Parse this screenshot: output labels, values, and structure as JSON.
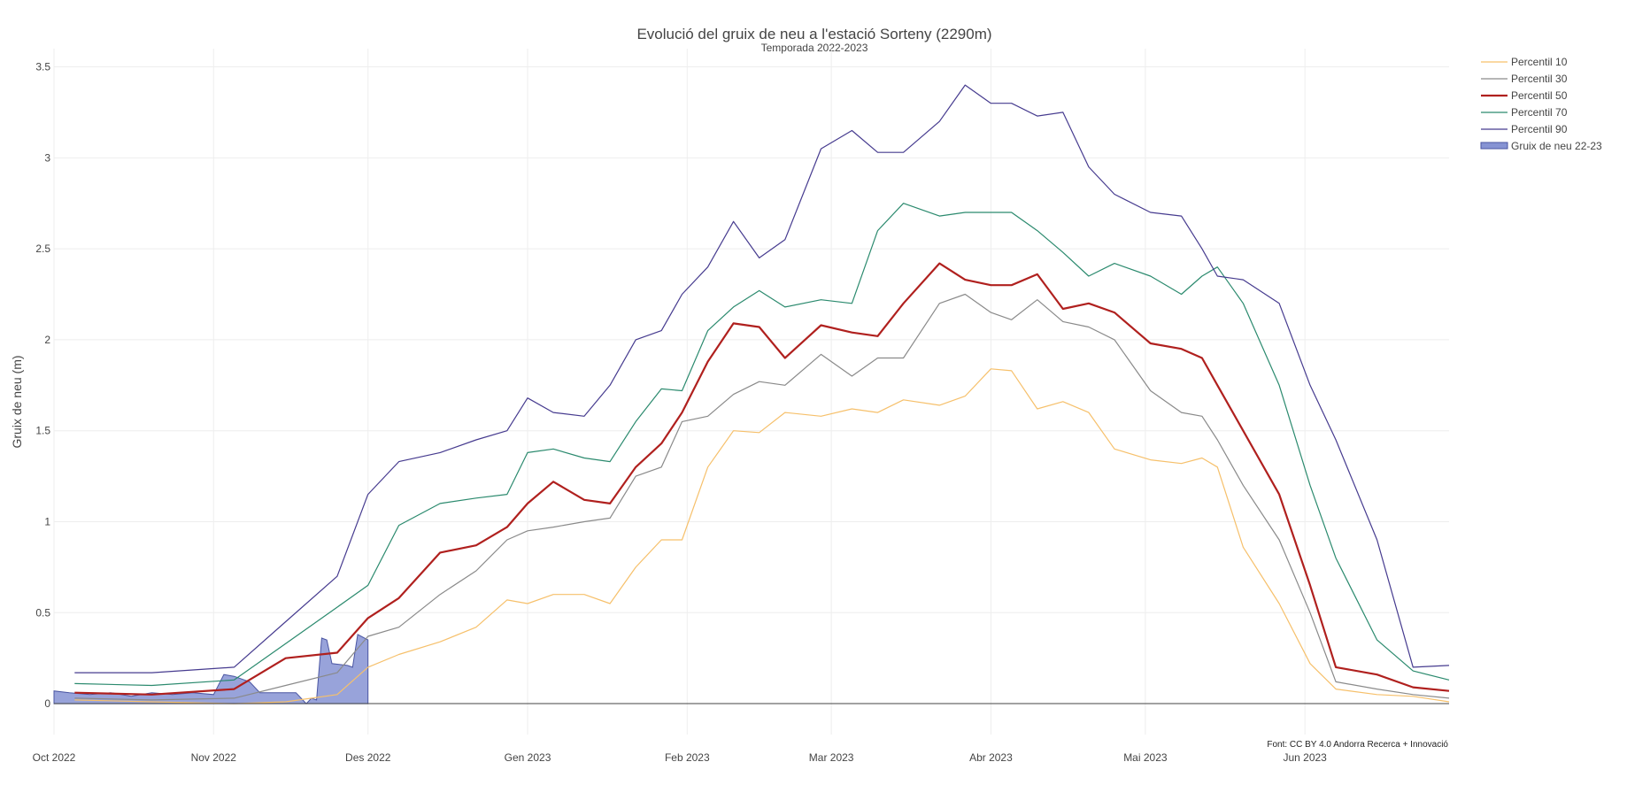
{
  "chart_data": {
    "type": "line",
    "title": "Evolució del gruix de neu a l'estació Sorteny (2290m)",
    "subtitle": "Temporada 2022-2023",
    "xlabel": "",
    "ylabel": "Gruix de neu (m)",
    "source": "Font: CC BY 4.0 Andorra Recerca + Innovació",
    "xlim": [
      "2022-10-01",
      "2023-06-29"
    ],
    "ylim": [
      -0.17,
      3.6
    ],
    "x_ticks": [
      {
        "date": "2022-10-01",
        "label": "Oct 2022"
      },
      {
        "date": "2022-11-01",
        "label": "Nov 2022"
      },
      {
        "date": "2022-12-01",
        "label": "Des 2022"
      },
      {
        "date": "2023-01-01",
        "label": "Gen 2023"
      },
      {
        "date": "2023-02-01",
        "label": "Feb 2023"
      },
      {
        "date": "2023-03-01",
        "label": "Mar 2023"
      },
      {
        "date": "2023-04-01",
        "label": "Abr 2023"
      },
      {
        "date": "2023-05-01",
        "label": "Mai 2023"
      },
      {
        "date": "2023-06-01",
        "label": "Jun 2023"
      }
    ],
    "y_ticks": [
      {
        "value": 0,
        "label": "0"
      },
      {
        "value": 0.5,
        "label": "0.5"
      },
      {
        "value": 1,
        "label": "1"
      },
      {
        "value": 1.5,
        "label": "1.5"
      },
      {
        "value": 2,
        "label": "2"
      },
      {
        "value": 2.5,
        "label": "2.5"
      },
      {
        "value": 3,
        "label": "3"
      },
      {
        "value": 3.5,
        "label": "3.5"
      }
    ],
    "grid": true,
    "legend_position": "right",
    "series": [
      {
        "name": "Percentil 10",
        "color": "#f6c06b",
        "width": 1.2,
        "kind": "line",
        "points": [
          [
            "2022-10-05",
            0.02
          ],
          [
            "2022-10-20",
            0.01
          ],
          [
            "2022-11-05",
            0.0
          ],
          [
            "2022-11-15",
            0.01
          ],
          [
            "2022-11-25",
            0.05
          ],
          [
            "2022-12-01",
            0.2
          ],
          [
            "2022-12-07",
            0.27
          ],
          [
            "2022-12-15",
            0.34
          ],
          [
            "2022-12-22",
            0.42
          ],
          [
            "2022-12-28",
            0.57
          ],
          [
            "2023-01-01",
            0.55
          ],
          [
            "2023-01-06",
            0.6
          ],
          [
            "2023-01-12",
            0.6
          ],
          [
            "2023-01-17",
            0.55
          ],
          [
            "2023-01-22",
            0.75
          ],
          [
            "2023-01-27",
            0.9
          ],
          [
            "2023-01-31",
            0.9
          ],
          [
            "2023-02-05",
            1.3
          ],
          [
            "2023-02-10",
            1.5
          ],
          [
            "2023-02-15",
            1.49
          ],
          [
            "2023-02-20",
            1.6
          ],
          [
            "2023-02-27",
            1.58
          ],
          [
            "2023-03-05",
            1.62
          ],
          [
            "2023-03-10",
            1.6
          ],
          [
            "2023-03-15",
            1.67
          ],
          [
            "2023-03-22",
            1.64
          ],
          [
            "2023-03-27",
            1.69
          ],
          [
            "2023-04-01",
            1.84
          ],
          [
            "2023-04-05",
            1.83
          ],
          [
            "2023-04-10",
            1.62
          ],
          [
            "2023-04-15",
            1.66
          ],
          [
            "2023-04-20",
            1.6
          ],
          [
            "2023-04-25",
            1.4
          ],
          [
            "2023-05-02",
            1.34
          ],
          [
            "2023-05-08",
            1.32
          ],
          [
            "2023-05-12",
            1.35
          ],
          [
            "2023-05-15",
            1.3
          ],
          [
            "2023-05-20",
            0.86
          ],
          [
            "2023-05-27",
            0.55
          ],
          [
            "2023-06-02",
            0.22
          ],
          [
            "2023-06-07",
            0.08
          ],
          [
            "2023-06-15",
            0.05
          ],
          [
            "2023-06-22",
            0.04
          ],
          [
            "2023-06-29",
            0.01
          ]
        ]
      },
      {
        "name": "Percentil 30",
        "color": "#8a8a8a",
        "width": 1.2,
        "kind": "line",
        "points": [
          [
            "2022-10-05",
            0.03
          ],
          [
            "2022-10-20",
            0.02
          ],
          [
            "2022-11-05",
            0.03
          ],
          [
            "2022-11-15",
            0.1
          ],
          [
            "2022-11-25",
            0.17
          ],
          [
            "2022-12-01",
            0.37
          ],
          [
            "2022-12-07",
            0.42
          ],
          [
            "2022-12-15",
            0.6
          ],
          [
            "2022-12-22",
            0.73
          ],
          [
            "2022-12-28",
            0.9
          ],
          [
            "2023-01-01",
            0.95
          ],
          [
            "2023-01-06",
            0.97
          ],
          [
            "2023-01-12",
            1.0
          ],
          [
            "2023-01-17",
            1.02
          ],
          [
            "2023-01-22",
            1.25
          ],
          [
            "2023-01-27",
            1.3
          ],
          [
            "2023-01-31",
            1.55
          ],
          [
            "2023-02-05",
            1.58
          ],
          [
            "2023-02-10",
            1.7
          ],
          [
            "2023-02-15",
            1.77
          ],
          [
            "2023-02-20",
            1.75
          ],
          [
            "2023-02-27",
            1.92
          ],
          [
            "2023-03-05",
            1.8
          ],
          [
            "2023-03-10",
            1.9
          ],
          [
            "2023-03-15",
            1.9
          ],
          [
            "2023-03-22",
            2.2
          ],
          [
            "2023-03-27",
            2.25
          ],
          [
            "2023-04-01",
            2.15
          ],
          [
            "2023-04-05",
            2.11
          ],
          [
            "2023-04-10",
            2.22
          ],
          [
            "2023-04-15",
            2.1
          ],
          [
            "2023-04-20",
            2.07
          ],
          [
            "2023-04-25",
            2.0
          ],
          [
            "2023-05-02",
            1.72
          ],
          [
            "2023-05-08",
            1.6
          ],
          [
            "2023-05-12",
            1.58
          ],
          [
            "2023-05-15",
            1.45
          ],
          [
            "2023-05-20",
            1.2
          ],
          [
            "2023-05-27",
            0.9
          ],
          [
            "2023-06-02",
            0.5
          ],
          [
            "2023-06-07",
            0.12
          ],
          [
            "2023-06-15",
            0.08
          ],
          [
            "2023-06-22",
            0.05
          ],
          [
            "2023-06-29",
            0.03
          ]
        ]
      },
      {
        "name": "Percentil 50",
        "color": "#b0201e",
        "width": 2.2,
        "kind": "line",
        "points": [
          [
            "2022-10-05",
            0.06
          ],
          [
            "2022-10-20",
            0.05
          ],
          [
            "2022-11-05",
            0.08
          ],
          [
            "2022-11-15",
            0.25
          ],
          [
            "2022-11-25",
            0.28
          ],
          [
            "2022-12-01",
            0.47
          ],
          [
            "2022-12-07",
            0.58
          ],
          [
            "2022-12-15",
            0.83
          ],
          [
            "2022-12-22",
            0.87
          ],
          [
            "2022-12-28",
            0.97
          ],
          [
            "2023-01-01",
            1.1
          ],
          [
            "2023-01-06",
            1.22
          ],
          [
            "2023-01-12",
            1.12
          ],
          [
            "2023-01-17",
            1.1
          ],
          [
            "2023-01-22",
            1.3
          ],
          [
            "2023-01-27",
            1.43
          ],
          [
            "2023-01-31",
            1.6
          ],
          [
            "2023-02-05",
            1.88
          ],
          [
            "2023-02-10",
            2.09
          ],
          [
            "2023-02-15",
            2.07
          ],
          [
            "2023-02-20",
            1.9
          ],
          [
            "2023-02-27",
            2.08
          ],
          [
            "2023-03-05",
            2.04
          ],
          [
            "2023-03-10",
            2.02
          ],
          [
            "2023-03-15",
            2.2
          ],
          [
            "2023-03-22",
            2.42
          ],
          [
            "2023-03-27",
            2.33
          ],
          [
            "2023-04-01",
            2.3
          ],
          [
            "2023-04-05",
            2.3
          ],
          [
            "2023-04-10",
            2.36
          ],
          [
            "2023-04-15",
            2.17
          ],
          [
            "2023-04-20",
            2.2
          ],
          [
            "2023-04-25",
            2.15
          ],
          [
            "2023-05-02",
            1.98
          ],
          [
            "2023-05-08",
            1.95
          ],
          [
            "2023-05-12",
            1.9
          ],
          [
            "2023-05-15",
            1.75
          ],
          [
            "2023-05-20",
            1.5
          ],
          [
            "2023-05-27",
            1.15
          ],
          [
            "2023-06-02",
            0.65
          ],
          [
            "2023-06-07",
            0.2
          ],
          [
            "2023-06-15",
            0.16
          ],
          [
            "2023-06-22",
            0.09
          ],
          [
            "2023-06-29",
            0.07
          ]
        ]
      },
      {
        "name": "Percentil 70",
        "color": "#2b8a6e",
        "width": 1.2,
        "kind": "line",
        "points": [
          [
            "2022-10-05",
            0.11
          ],
          [
            "2022-10-20",
            0.1
          ],
          [
            "2022-11-05",
            0.13
          ],
          [
            "2022-11-15",
            0.33
          ],
          [
            "2022-11-25",
            0.53
          ],
          [
            "2022-12-01",
            0.65
          ],
          [
            "2022-12-07",
            0.98
          ],
          [
            "2022-12-15",
            1.1
          ],
          [
            "2022-12-22",
            1.13
          ],
          [
            "2022-12-28",
            1.15
          ],
          [
            "2023-01-01",
            1.38
          ],
          [
            "2023-01-06",
            1.4
          ],
          [
            "2023-01-12",
            1.35
          ],
          [
            "2023-01-17",
            1.33
          ],
          [
            "2023-01-22",
            1.55
          ],
          [
            "2023-01-27",
            1.73
          ],
          [
            "2023-01-31",
            1.72
          ],
          [
            "2023-02-05",
            2.05
          ],
          [
            "2023-02-10",
            2.18
          ],
          [
            "2023-02-15",
            2.27
          ],
          [
            "2023-02-20",
            2.18
          ],
          [
            "2023-02-27",
            2.22
          ],
          [
            "2023-03-05",
            2.2
          ],
          [
            "2023-03-10",
            2.6
          ],
          [
            "2023-03-15",
            2.75
          ],
          [
            "2023-03-22",
            2.68
          ],
          [
            "2023-03-27",
            2.7
          ],
          [
            "2023-04-01",
            2.7
          ],
          [
            "2023-04-05",
            2.7
          ],
          [
            "2023-04-10",
            2.6
          ],
          [
            "2023-04-15",
            2.48
          ],
          [
            "2023-04-20",
            2.35
          ],
          [
            "2023-04-25",
            2.42
          ],
          [
            "2023-05-02",
            2.35
          ],
          [
            "2023-05-08",
            2.25
          ],
          [
            "2023-05-12",
            2.35
          ],
          [
            "2023-05-15",
            2.4
          ],
          [
            "2023-05-20",
            2.2
          ],
          [
            "2023-05-27",
            1.75
          ],
          [
            "2023-06-02",
            1.2
          ],
          [
            "2023-06-07",
            0.8
          ],
          [
            "2023-06-15",
            0.35
          ],
          [
            "2023-06-22",
            0.18
          ],
          [
            "2023-06-29",
            0.13
          ]
        ]
      },
      {
        "name": "Percentil 90",
        "color": "#463b8f",
        "width": 1.2,
        "kind": "line",
        "points": [
          [
            "2022-10-05",
            0.17
          ],
          [
            "2022-10-20",
            0.17
          ],
          [
            "2022-11-05",
            0.2
          ],
          [
            "2022-11-15",
            0.45
          ],
          [
            "2022-11-25",
            0.7
          ],
          [
            "2022-12-01",
            1.15
          ],
          [
            "2022-12-07",
            1.33
          ],
          [
            "2022-12-15",
            1.38
          ],
          [
            "2022-12-22",
            1.45
          ],
          [
            "2022-12-28",
            1.5
          ],
          [
            "2023-01-01",
            1.68
          ],
          [
            "2023-01-06",
            1.6
          ],
          [
            "2023-01-12",
            1.58
          ],
          [
            "2023-01-17",
            1.75
          ],
          [
            "2023-01-22",
            2.0
          ],
          [
            "2023-01-27",
            2.05
          ],
          [
            "2023-01-31",
            2.25
          ],
          [
            "2023-02-05",
            2.4
          ],
          [
            "2023-02-10",
            2.65
          ],
          [
            "2023-02-15",
            2.45
          ],
          [
            "2023-02-20",
            2.55
          ],
          [
            "2023-02-27",
            3.05
          ],
          [
            "2023-03-05",
            3.15
          ],
          [
            "2023-03-10",
            3.03
          ],
          [
            "2023-03-15",
            3.03
          ],
          [
            "2023-03-22",
            3.2
          ],
          [
            "2023-03-27",
            3.4
          ],
          [
            "2023-04-01",
            3.3
          ],
          [
            "2023-04-05",
            3.3
          ],
          [
            "2023-04-10",
            3.23
          ],
          [
            "2023-04-15",
            3.25
          ],
          [
            "2023-04-20",
            2.95
          ],
          [
            "2023-04-25",
            2.8
          ],
          [
            "2023-05-02",
            2.7
          ],
          [
            "2023-05-08",
            2.68
          ],
          [
            "2023-05-12",
            2.5
          ],
          [
            "2023-05-15",
            2.35
          ],
          [
            "2023-05-20",
            2.33
          ],
          [
            "2023-05-27",
            2.2
          ],
          [
            "2023-06-02",
            1.75
          ],
          [
            "2023-06-07",
            1.45
          ],
          [
            "2023-06-15",
            0.9
          ],
          [
            "2023-06-22",
            0.2
          ],
          [
            "2023-06-29",
            0.21
          ]
        ]
      },
      {
        "name": "Gruix de neu 22-23",
        "color": "#8693d3",
        "stroke": "#4a55a2",
        "kind": "area",
        "points": [
          [
            "2022-10-01",
            0.07
          ],
          [
            "2022-10-04",
            0.06
          ],
          [
            "2022-10-08",
            0.05
          ],
          [
            "2022-10-12",
            0.06
          ],
          [
            "2022-10-16",
            0.04
          ],
          [
            "2022-10-20",
            0.06
          ],
          [
            "2022-10-24",
            0.05
          ],
          [
            "2022-10-28",
            0.06
          ],
          [
            "2022-11-01",
            0.05
          ],
          [
            "2022-11-03",
            0.16
          ],
          [
            "2022-11-05",
            0.15
          ],
          [
            "2022-11-08",
            0.12
          ],
          [
            "2022-11-10",
            0.06
          ],
          [
            "2022-11-14",
            0.06
          ],
          [
            "2022-11-17",
            0.06
          ],
          [
            "2022-11-19",
            0.0
          ],
          [
            "2022-11-20",
            0.03
          ],
          [
            "2022-11-21",
            0.02
          ],
          [
            "2022-11-22",
            0.36
          ],
          [
            "2022-11-23",
            0.35
          ],
          [
            "2022-11-24",
            0.22
          ],
          [
            "2022-11-27",
            0.21
          ],
          [
            "2022-11-28",
            0.2
          ],
          [
            "2022-11-29",
            0.38
          ],
          [
            "2022-12-01",
            0.35
          ],
          [
            "2022-12-01",
            0.0
          ]
        ]
      }
    ]
  }
}
